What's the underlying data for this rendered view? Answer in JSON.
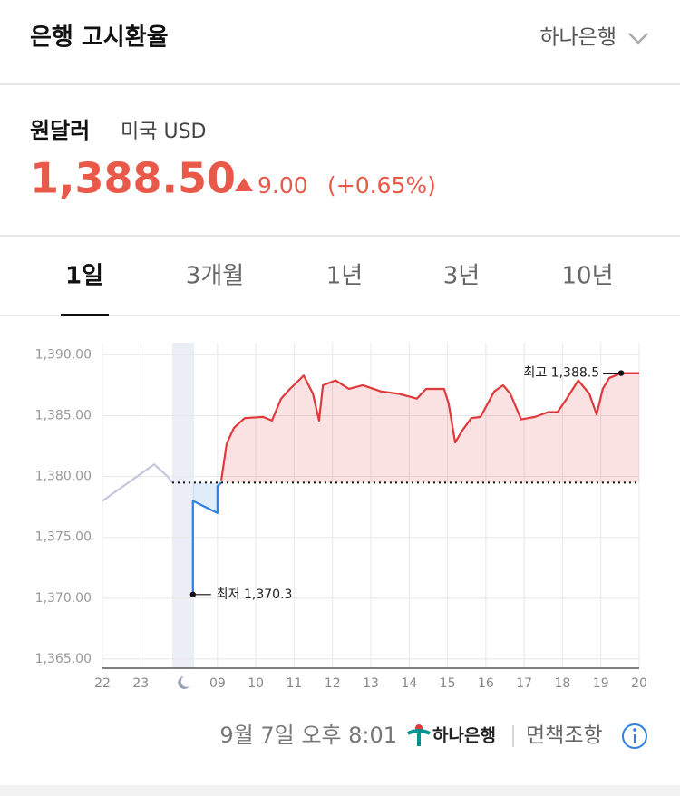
{
  "header": {
    "title": "은행 고시환율",
    "bank": "하나은행"
  },
  "currency": {
    "name": "원달러",
    "sub": "미국 USD",
    "price": "1,388.50",
    "change": "9.00",
    "change_pct": "(+0.65%)"
  },
  "tabs": [
    "1일",
    "3개월",
    "1년",
    "3년",
    "10년"
  ],
  "chart_data": {
    "type": "line",
    "xlim": [
      0,
      14
    ],
    "ylim": [
      1364.25,
      1391
    ],
    "xticks": [
      {
        "value": 0,
        "label": "22"
      },
      {
        "value": 1,
        "label": "23"
      },
      {
        "value": 3,
        "label": "09"
      },
      {
        "value": 4,
        "label": "10"
      },
      {
        "value": 5,
        "label": "11"
      },
      {
        "value": 6,
        "label": "12"
      },
      {
        "value": 7,
        "label": "13"
      },
      {
        "value": 8,
        "label": "14"
      },
      {
        "value": 9,
        "label": "15"
      },
      {
        "value": 10,
        "label": "16"
      },
      {
        "value": 11,
        "label": "17"
      },
      {
        "value": 12,
        "label": "18"
      },
      {
        "value": 13,
        "label": "19"
      },
      {
        "value": 14,
        "label": "20"
      }
    ],
    "yticks": [
      {
        "value": 1365,
        "label": "1,365.00"
      },
      {
        "value": 1370,
        "label": "1,370.00"
      },
      {
        "value": 1375,
        "label": "1,375.00"
      },
      {
        "value": 1380,
        "label": "1,380.00"
      },
      {
        "value": 1385,
        "label": "1,385.00"
      },
      {
        "value": 1390,
        "label": "1,390.00"
      }
    ],
    "grid": true,
    "baseline": 1379.5,
    "shaded_x": [
      1.82,
      2.39
    ],
    "series": [
      {
        "color": "#c5c8dc",
        "fill": false,
        "x": [
          0,
          1.35,
          1.7,
          1.82
        ],
        "values": [
          1378,
          1381,
          1380,
          1379.5
        ]
      },
      {
        "color": "#2f80e0",
        "fill": true,
        "x": [
          2.36,
          2.36,
          3.0,
          3.0,
          3.1
        ],
        "values": [
          1370.3,
          1378,
          1377,
          1379.2,
          1379.5
        ]
      },
      {
        "color": "#e0393c",
        "fill": true,
        "x": [
          3.1,
          3.24,
          3.43,
          3.71,
          4.19,
          4.42,
          4.66,
          4.89,
          5.25,
          5.49,
          5.65,
          5.75,
          6.08,
          6.43,
          6.79,
          7.26,
          7.73,
          8.2,
          8.44,
          8.91,
          9.03,
          9.2,
          9.39,
          9.62,
          9.86,
          10.22,
          10.45,
          10.64,
          10.92,
          11.28,
          11.63,
          11.87,
          12.11,
          12.41,
          12.7,
          12.89,
          13.05,
          13.22,
          13.53,
          14
        ],
        "values": [
          1379.7,
          1382.7,
          1384.0,
          1384.8,
          1384.9,
          1384.6,
          1386.4,
          1387.2,
          1388.3,
          1386.8,
          1384.6,
          1387.5,
          1387.9,
          1387.2,
          1387.5,
          1387.0,
          1386.8,
          1386.4,
          1387.2,
          1387.2,
          1386.0,
          1382.8,
          1383.8,
          1384.8,
          1384.9,
          1387.0,
          1387.5,
          1386.8,
          1384.7,
          1384.9,
          1385.3,
          1385.3,
          1386.4,
          1387.9,
          1386.8,
          1385.1,
          1387.2,
          1388.1,
          1388.5,
          1388.5
        ]
      }
    ],
    "annotations": [
      {
        "text": "최고 1,388.5",
        "x": 13.53,
        "y": 1388.5
      },
      {
        "text": "최저 1,370.3",
        "x": 2.36,
        "y": 1370.3
      }
    ]
  },
  "footer": {
    "timestamp": "9월 7일 오후 8:01",
    "logo": "하나은행",
    "disclaimer": "면책조항"
  }
}
